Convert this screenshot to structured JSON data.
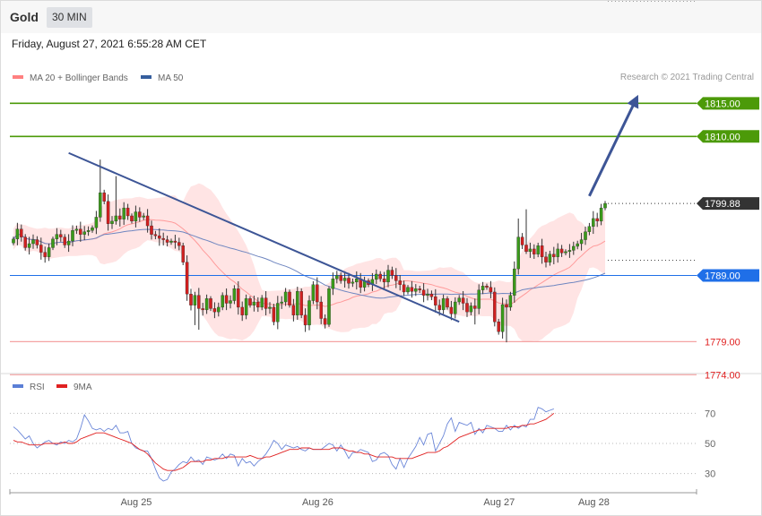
{
  "header": {
    "instrument": "Gold",
    "timeframe": "30 MIN",
    "timestamp": "Friday, August 27, 2021 6:55:28 AM CET"
  },
  "legend_main": [
    {
      "label": "MA 20 + Bollinger Bands",
      "color": "#ff8080"
    },
    {
      "label": "MA 50",
      "color": "#365f9e"
    }
  ],
  "credit": "Research © 2021 Trading Central",
  "legend_rsi": [
    {
      "label": "RSI",
      "color": "#5b7fd6"
    },
    {
      "label": "9MA",
      "color": "#e02020"
    }
  ],
  "levels": [
    {
      "value": 1815.0,
      "label": "1815.00",
      "kind": "resistance",
      "color": "#4c9a09"
    },
    {
      "value": 1810.0,
      "label": "1810.00",
      "kind": "resistance",
      "color": "#4c9a09"
    },
    {
      "value": 1799.88,
      "label": "1799.88",
      "kind": "last",
      "color": "#333333"
    },
    {
      "value": 1789.0,
      "label": "1789.00",
      "kind": "pivot",
      "color": "#1f6fe8"
    },
    {
      "value": 1779.0,
      "label": "1779.00",
      "kind": "support",
      "color": "#e02020"
    },
    {
      "value": 1774.0,
      "label": "1774.00",
      "kind": "support",
      "color": "#e02020"
    }
  ],
  "rsi_levels": [
    {
      "value": 70,
      "label": "70"
    },
    {
      "value": 50,
      "label": "50"
    },
    {
      "value": 30,
      "label": "30"
    }
  ],
  "x_labels": [
    {
      "label": "Aug 25",
      "bar": 30
    },
    {
      "label": "Aug 26",
      "bar": 76
    },
    {
      "label": "Aug 27",
      "bar": 122
    },
    {
      "label": "Aug 28",
      "bar": 146
    }
  ],
  "chart_data": {
    "type": "candlestick",
    "interval": "30 MIN",
    "price_range": [
      1772,
      1821
    ],
    "close": [
      1794.5,
      1796.0,
      1794.8,
      1793.2,
      1793.8,
      1794.4,
      1793.6,
      1792.5,
      1791.8,
      1793.2,
      1794.5,
      1795.2,
      1794.8,
      1793.6,
      1794.2,
      1795.8,
      1796.0,
      1795.2,
      1795.6,
      1795.8,
      1796.2,
      1797.8,
      1801.5,
      1800.2,
      1796.8,
      1797.2,
      1798.0,
      1797.5,
      1799.2,
      1798.0,
      1797.2,
      1798.6,
      1797.8,
      1798.0,
      1796.5,
      1795.2,
      1795.0,
      1794.6,
      1794.4,
      1794.0,
      1794.2,
      1794.0,
      1793.5,
      1791.0,
      1786.2,
      1784.5,
      1786.0,
      1784.0,
      1783.8,
      1785.5,
      1784.0,
      1783.5,
      1784.2,
      1786.0,
      1784.8,
      1785.2,
      1787.0,
      1784.2,
      1783.0,
      1785.5,
      1784.5,
      1785.0,
      1784.2,
      1785.6,
      1784.0,
      1784.2,
      1782.0,
      1784.8,
      1785.0,
      1786.5,
      1784.5,
      1783.0,
      1786.6,
      1783.0,
      1781.5,
      1785.2,
      1787.6,
      1785.0,
      1782.5,
      1781.6,
      1787.0,
      1788.5,
      1789.0,
      1788.2,
      1788.6,
      1787.8,
      1788.0,
      1788.5,
      1787.2,
      1788.2,
      1787.6,
      1788.4,
      1789.2,
      1788.5,
      1788.0,
      1789.8,
      1789.0,
      1788.2,
      1787.6,
      1786.5,
      1787.2,
      1786.6,
      1787.0,
      1786.8,
      1786.0,
      1786.2,
      1785.8,
      1784.5,
      1783.8,
      1785.5,
      1784.2,
      1783.2,
      1785.0,
      1785.6,
      1784.8,
      1783.5,
      1784.4,
      1784.0,
      1786.8,
      1787.4,
      1787.2,
      1786.5,
      1782.0,
      1780.5,
      1784.6,
      1784.2,
      1786.0,
      1790.0,
      1794.8,
      1793.6,
      1792.6,
      1793.0,
      1792.2,
      1793.5,
      1791.8,
      1791.0,
      1792.2,
      1791.8,
      1793.0,
      1792.4,
      1792.6,
      1792.8,
      1793.4,
      1793.8,
      1794.4,
      1795.6,
      1796.4,
      1797.6,
      1797.2,
      1799.2,
      1799.88
    ],
    "rsi": [
      61,
      59,
      56,
      53,
      55,
      50,
      47,
      49,
      51,
      52,
      50,
      49,
      51,
      50,
      52,
      51,
      53,
      60,
      69,
      65,
      60,
      59,
      60,
      58,
      60,
      59,
      62,
      57,
      57,
      58,
      50,
      47,
      46,
      45,
      45,
      40,
      33,
      27,
      25,
      26,
      31,
      33,
      36,
      38,
      37,
      41,
      38,
      39,
      36,
      41,
      40,
      39,
      40,
      43,
      40,
      43,
      42,
      35,
      40,
      37,
      38,
      35,
      38,
      40,
      43,
      47,
      52,
      50,
      46,
      49,
      48,
      47,
      48,
      46,
      45,
      47,
      46,
      46,
      46,
      48,
      50,
      49,
      45,
      49,
      45,
      40,
      44,
      44,
      46,
      45,
      44,
      38,
      39,
      43,
      44,
      42,
      36,
      33,
      40,
      34,
      40,
      44,
      48,
      54,
      49,
      56,
      57,
      45,
      50,
      55,
      63,
      67,
      58,
      64,
      63,
      62,
      64,
      56,
      60,
      57,
      62,
      61,
      60,
      58,
      58,
      62,
      59,
      62,
      60,
      62,
      61,
      66,
      66,
      74,
      73,
      71,
      72,
      73
    ],
    "rsi_ma9": [
      52,
      51,
      51,
      50,
      49,
      49,
      49,
      49,
      50,
      50,
      50,
      50,
      50,
      51,
      50,
      50,
      51,
      53,
      54,
      55,
      56,
      57,
      57,
      57,
      56,
      55,
      54,
      53,
      52,
      51,
      50,
      48,
      46,
      45,
      43,
      40,
      37,
      35,
      33,
      32,
      32,
      32,
      33,
      34,
      36,
      38,
      38,
      38,
      38,
      39,
      39,
      40,
      40,
      40,
      41,
      41,
      41,
      41,
      41,
      41,
      42,
      41,
      40,
      40,
      41,
      41,
      42,
      43,
      44,
      45,
      46,
      46,
      46,
      47,
      47,
      47,
      46,
      46,
      46,
      46,
      46,
      47,
      47,
      47,
      46,
      45,
      45,
      44,
      44,
      43,
      43,
      42,
      41,
      41,
      41,
      41,
      41,
      40,
      40,
      40,
      40,
      40,
      41,
      42,
      43,
      44,
      44,
      44,
      45,
      47,
      48,
      50,
      52,
      54,
      55,
      56,
      57,
      58,
      59,
      59,
      60,
      60,
      60,
      60,
      60,
      60,
      61,
      61,
      61,
      62,
      62,
      63,
      63,
      64,
      65,
      66,
      68,
      70
    ],
    "trendlines": [
      {
        "from": {
          "bar": 14,
          "price": 1807.5
        },
        "to": {
          "bar": 113,
          "price": 1782.0
        }
      },
      {
        "from": {
          "bar": 146,
          "price": 1801.0
        },
        "to": {
          "bar": 158,
          "price": 1815.8
        },
        "arrow": true
      }
    ],
    "title": "",
    "xlabel": "",
    "ylabel": ""
  }
}
